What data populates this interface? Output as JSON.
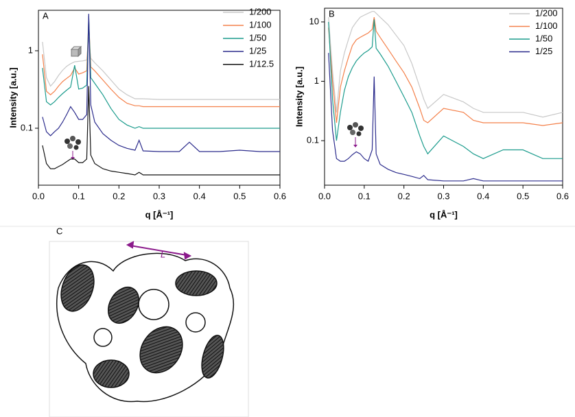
{
  "chart_data": [
    {
      "type": "line",
      "panel": "A",
      "x_label": "q [Å⁻¹]",
      "y_label": "Intensity [a.u.]",
      "log_y": true,
      "legend": "upper right",
      "xlim": [
        0,
        0.6
      ],
      "xticks": [
        {
          "value": 0,
          "label": "0.0"
        },
        0.1,
        0.2,
        0.3,
        0.4,
        0.5,
        0.6
      ],
      "ylim": [
        0.0184,
        3.33
      ],
      "yticks": [
        0.1,
        1
      ],
      "x": [
        0.01,
        0.02,
        0.03,
        0.04,
        0.05,
        0.06,
        0.07,
        0.08,
        0.09,
        0.1,
        0.11,
        0.12,
        0.125,
        0.13,
        0.14,
        0.16,
        0.18,
        0.2,
        0.22,
        0.24,
        0.25,
        0.26,
        0.3,
        0.35,
        0.375,
        0.4,
        0.45,
        0.5,
        0.55,
        0.6
      ],
      "series": [
        {
          "name": "1/200",
          "color": "#c8c8c8",
          "values": [
            1.3,
            0.45,
            0.35,
            0.4,
            0.48,
            0.56,
            0.63,
            0.68,
            0.72,
            0.73,
            0.74,
            0.76,
            1.5,
            0.8,
            0.7,
            0.55,
            0.42,
            0.32,
            0.27,
            0.24,
            0.24,
            0.24,
            0.235,
            0.235,
            0.235,
            0.235,
            0.235,
            0.235,
            0.235,
            0.235
          ]
        },
        {
          "name": "1/100",
          "color": "#f4804a",
          "values": [
            0.9,
            0.3,
            0.27,
            0.3,
            0.35,
            0.4,
            0.44,
            0.48,
            0.6,
            0.5,
            0.52,
            0.55,
            2.5,
            0.62,
            0.55,
            0.42,
            0.32,
            0.25,
            0.21,
            0.195,
            0.195,
            0.19,
            0.19,
            0.19,
            0.19,
            0.19,
            0.19,
            0.19,
            0.19,
            0.19
          ]
        },
        {
          "name": "1/50",
          "color": "#1a9b8c",
          "values": [
            0.6,
            0.22,
            0.2,
            0.22,
            0.25,
            0.28,
            0.31,
            0.34,
            0.65,
            0.32,
            0.33,
            0.36,
            2.8,
            0.45,
            0.38,
            0.27,
            0.18,
            0.13,
            0.11,
            0.1,
            0.105,
            0.1,
            0.1,
            0.1,
            0.1,
            0.1,
            0.1,
            0.1,
            0.1,
            0.1
          ]
        },
        {
          "name": "1/25",
          "color": "#2b2b8c",
          "values": [
            0.14,
            0.09,
            0.08,
            0.09,
            0.1,
            0.12,
            0.15,
            0.19,
            0.16,
            0.13,
            0.13,
            0.15,
            3.0,
            0.2,
            0.12,
            0.085,
            0.07,
            0.06,
            0.055,
            0.052,
            0.07,
            0.051,
            0.05,
            0.05,
            0.066,
            0.05,
            0.05,
            0.052,
            0.05,
            0.05
          ]
        },
        {
          "name": "1/12.5",
          "color": "#111111",
          "values": [
            0.06,
            0.035,
            0.03,
            0.03,
            0.032,
            0.034,
            0.037,
            0.04,
            0.04,
            0.036,
            0.036,
            0.04,
            0.35,
            0.045,
            0.035,
            0.03,
            0.028,
            0.027,
            0.026,
            0.025,
            0.027,
            0.025,
            0.025,
            0.025,
            0.025,
            0.025,
            0.025,
            0.025,
            0.025,
            0.025
          ]
        }
      ]
    },
    {
      "type": "line",
      "panel": "B",
      "x_label": "q [Å⁻¹]",
      "y_label": "Intensity [a.u.]",
      "log_y": true,
      "legend": "upper right",
      "xlim": [
        0,
        0.6
      ],
      "xticks": [
        {
          "value": 0,
          "label": "0.0"
        },
        0.1,
        0.2,
        0.3,
        0.4,
        0.5,
        0.6
      ],
      "ylim": [
        0.0178,
        17
      ],
      "yticks": [
        0.1,
        1,
        10
      ],
      "x": [
        0.01,
        0.02,
        0.03,
        0.04,
        0.05,
        0.06,
        0.07,
        0.08,
        0.09,
        0.1,
        0.11,
        0.12,
        0.125,
        0.13,
        0.14,
        0.16,
        0.18,
        0.2,
        0.22,
        0.24,
        0.25,
        0.26,
        0.3,
        0.35,
        0.375,
        0.4,
        0.45,
        0.5,
        0.55,
        0.6
      ],
      "series": [
        {
          "name": "1/200",
          "color": "#c8c8c8",
          "values": [
            12,
            1.5,
            0.3,
            1.5,
            3,
            5,
            8,
            10,
            12,
            13,
            14,
            15,
            15,
            14,
            12,
            9,
            6,
            4,
            2,
            0.8,
            0.5,
            0.35,
            0.6,
            0.45,
            0.35,
            0.3,
            0.3,
            0.3,
            0.25,
            0.3
          ]
        },
        {
          "name": "1/100",
          "color": "#f4804a",
          "values": [
            8,
            1,
            0.2,
            0.8,
            1.5,
            2.5,
            4,
            5,
            5.5,
            6,
            6.5,
            7.5,
            12,
            7,
            5.5,
            3.5,
            2.2,
            1.4,
            0.8,
            0.35,
            0.22,
            0.2,
            0.35,
            0.3,
            0.22,
            0.2,
            0.2,
            0.2,
            0.18,
            0.2
          ]
        },
        {
          "name": "1/50",
          "color": "#1a9b8c",
          "values": [
            10,
            0.5,
            0.1,
            0.3,
            0.7,
            1.2,
            1.7,
            2.2,
            2.6,
            3,
            3.3,
            3.8,
            11,
            3.6,
            2.9,
            1.8,
            1,
            0.55,
            0.3,
            0.12,
            0.08,
            0.06,
            0.12,
            0.08,
            0.06,
            0.05,
            0.07,
            0.07,
            0.05,
            0.05
          ]
        },
        {
          "name": "1/25",
          "color": "#2b2b8c",
          "values": [
            3,
            0.15,
            0.05,
            0.045,
            0.045,
            0.05,
            0.058,
            0.065,
            0.06,
            0.05,
            0.045,
            0.07,
            1.2,
            0.06,
            0.04,
            0.033,
            0.029,
            0.027,
            0.025,
            0.023,
            0.026,
            0.022,
            0.021,
            0.021,
            0.023,
            0.021,
            0.021,
            0.021,
            0.021,
            0.021
          ]
        }
      ]
    }
  ],
  "panel_c": {
    "label": "C",
    "annotation": "L"
  }
}
